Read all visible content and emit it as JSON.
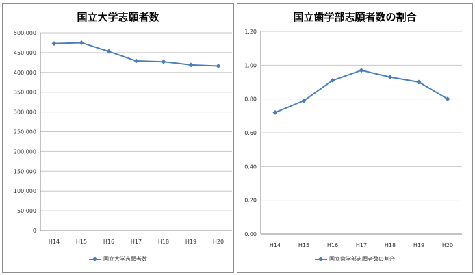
{
  "chart_data": [
    {
      "type": "line",
      "title": "国立大学志願者数",
      "categories": [
        "H14",
        "H15",
        "H16",
        "H17",
        "H18",
        "H19",
        "H20"
      ],
      "series": [
        {
          "name": "国立大学志願者数",
          "values": [
            473000,
            475000,
            453000,
            429000,
            427000,
            419000,
            416000
          ]
        }
      ],
      "ylim": [
        0,
        500000
      ],
      "yticks": [
        "0",
        "50,000",
        "100,000",
        "150,000",
        "200,000",
        "250,000",
        "300,000",
        "350,000",
        "400,000",
        "450,000",
        "500,000"
      ],
      "grid": true,
      "legend": "bottom",
      "color": "#4a7ebb"
    },
    {
      "type": "line",
      "title": "国立歯学部志願者数の割合",
      "categories": [
        "H14",
        "H15",
        "H16",
        "H17",
        "H18",
        "H19",
        "H20"
      ],
      "series": [
        {
          "name": "国立歯学部志願者数の割合",
          "values": [
            0.72,
            0.79,
            0.91,
            0.97,
            0.93,
            0.9,
            0.8
          ]
        }
      ],
      "ylim": [
        0,
        1.2
      ],
      "yticks": [
        "0.00",
        "0.20",
        "0.40",
        "0.60",
        "0.80",
        "1.00",
        "1.20"
      ],
      "grid": true,
      "legend": "bottom",
      "color": "#4a7ebb"
    }
  ]
}
